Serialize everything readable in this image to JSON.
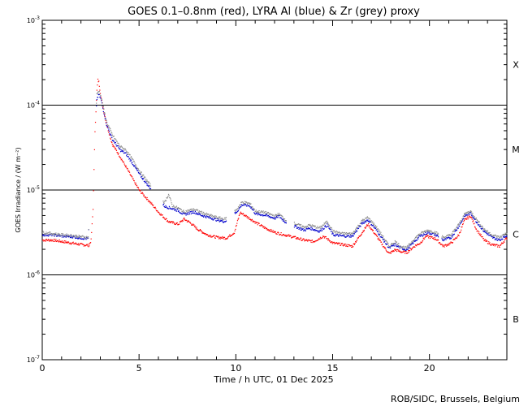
{
  "chart_data": {
    "type": "scatter",
    "title": "GOES 0.1–0.8nm (red), LYRA Al (blue) & Zr (grey) proxy",
    "xlabel": "Time / h UTC, 01 Dec 2025",
    "ylabel": "GOES Irradiance / (W m⁻²)",
    "yscale": "log",
    "xlim": [
      0,
      24
    ],
    "ylim": [
      1e-07,
      0.001
    ],
    "x_ticks": [
      0,
      5,
      10,
      15,
      20
    ],
    "x_tick_labels": [
      "0",
      "5",
      "10",
      "15",
      "20"
    ],
    "y_ticks": [
      {
        "base": "10",
        "exp": "-7",
        "value": 1e-07
      },
      {
        "base": "10",
        "exp": "-6",
        "value": 1e-06
      },
      {
        "base": "10",
        "exp": "-5",
        "value": 1e-05
      },
      {
        "base": "10",
        "exp": "-4",
        "value": 0.0001
      },
      {
        "base": "10",
        "exp": "-3",
        "value": 0.001
      }
    ],
    "flare_class_lines": [
      1e-06,
      1e-05,
      0.0001
    ],
    "flare_classes": [
      {
        "label": "X",
        "value": 0.0003
      },
      {
        "label": "M",
        "value": 3e-05
      },
      {
        "label": "C",
        "value": 3e-06
      },
      {
        "label": "B",
        "value": 3e-07
      }
    ],
    "series": [
      {
        "name": "GOES 0.1–0.8nm",
        "color": "#ff0000",
        "points": [
          [
            0,
            2.6e-06
          ],
          [
            0.5,
            2.6e-06
          ],
          [
            1.0,
            2.5e-06
          ],
          [
            1.5,
            2.4e-06
          ],
          [
            2.0,
            2.3e-06
          ],
          [
            2.4,
            2.25e-06
          ],
          [
            2.5,
            2.6e-06
          ],
          [
            2.6,
            6e-06
          ],
          [
            2.7,
            5e-05
          ],
          [
            2.8,
            0.00015
          ],
          [
            2.85,
            0.0002
          ],
          [
            2.9,
            0.00019
          ],
          [
            3.0,
            0.00013
          ],
          [
            3.3,
            6e-05
          ],
          [
            3.6,
            3.5e-05
          ],
          [
            4.0,
            2.5e-05
          ],
          [
            4.3,
            1.9e-05
          ],
          [
            4.7,
            1.3e-05
          ],
          [
            5.0,
            1e-05
          ],
          [
            5.5,
            7.5e-06
          ],
          [
            6.0,
            5.5e-06
          ],
          [
            6.5,
            4.3e-06
          ],
          [
            7.0,
            4e-06
          ],
          [
            7.3,
            4.6e-06
          ],
          [
            7.6,
            4.2e-06
          ],
          [
            8.0,
            3.5e-06
          ],
          [
            8.5,
            3e-06
          ],
          [
            9.0,
            2.8e-06
          ],
          [
            9.5,
            2.75e-06
          ],
          [
            9.9,
            3.2e-06
          ],
          [
            10.2,
            5.5e-06
          ],
          [
            10.5,
            5e-06
          ],
          [
            11.0,
            4.2e-06
          ],
          [
            11.5,
            3.6e-06
          ],
          [
            12.0,
            3.2e-06
          ],
          [
            12.5,
            3e-06
          ],
          [
            13.0,
            2.8e-06
          ],
          [
            13.5,
            2.6e-06
          ],
          [
            14.0,
            2.5e-06
          ],
          [
            14.5,
            2.9e-06
          ],
          [
            15.0,
            2.4e-06
          ],
          [
            15.5,
            2.3e-06
          ],
          [
            16.0,
            2.2e-06
          ],
          [
            16.5,
            3.2e-06
          ],
          [
            16.8,
            4e-06
          ],
          [
            17.2,
            3e-06
          ],
          [
            17.6,
            2.2e-06
          ],
          [
            17.9,
            1.8e-06
          ],
          [
            18.2,
            2e-06
          ],
          [
            18.5,
            1.9e-06
          ],
          [
            18.8,
            1.85e-06
          ],
          [
            19.2,
            2.2e-06
          ],
          [
            19.5,
            2.4e-06
          ],
          [
            19.8,
            2.9e-06
          ],
          [
            20.3,
            2.7e-06
          ],
          [
            20.7,
            2.2e-06
          ],
          [
            21.1,
            2.4e-06
          ],
          [
            21.5,
            3e-06
          ],
          [
            21.8,
            4.5e-06
          ],
          [
            22.1,
            5e-06
          ],
          [
            22.4,
            3.5e-06
          ],
          [
            22.8,
            2.6e-06
          ],
          [
            23.2,
            2.3e-06
          ],
          [
            23.6,
            2.2e-06
          ],
          [
            24.0,
            2.8e-06
          ]
        ]
      },
      {
        "name": "LYRA Al proxy",
        "color": "#0000cc",
        "points": [
          [
            0,
            3e-06
          ],
          [
            0.5,
            3e-06
          ],
          [
            1.0,
            2.9e-06
          ],
          [
            1.5,
            2.85e-06
          ],
          [
            2.0,
            2.75e-06
          ],
          [
            2.35,
            2.7e-06
          ],
          [
            2.8,
            0.00012
          ],
          [
            2.9,
            0.000135
          ],
          [
            3.0,
            0.00012
          ],
          [
            3.3,
            6e-05
          ],
          [
            3.6,
            4e-05
          ],
          [
            4.0,
            3e-05
          ],
          [
            4.3,
            2.7e-05
          ],
          [
            4.7,
            2e-05
          ],
          [
            5.0,
            1.55e-05
          ],
          [
            5.5,
            1.1e-05
          ],
          [
            6.3,
            6.5e-06
          ],
          [
            6.7,
            6.1e-06
          ],
          [
            7.0,
            5.8e-06
          ],
          [
            7.3,
            5.2e-06
          ],
          [
            7.8,
            5.6e-06
          ],
          [
            8.2,
            5.1e-06
          ],
          [
            8.6,
            4.8e-06
          ],
          [
            9.0,
            4.5e-06
          ],
          [
            9.4,
            4.3e-06
          ],
          [
            10.0,
            5.5e-06
          ],
          [
            10.3,
            6.8e-06
          ],
          [
            10.7,
            6.6e-06
          ],
          [
            11.0,
            5.3e-06
          ],
          [
            11.5,
            5.1e-06
          ],
          [
            12.0,
            4.7e-06
          ],
          [
            12.2,
            5e-06
          ],
          [
            12.5,
            4.3e-06
          ],
          [
            13.0,
            3.8e-06
          ],
          [
            13.5,
            3.4e-06
          ],
          [
            13.8,
            3.6e-06
          ],
          [
            14.3,
            3.3e-06
          ],
          [
            14.7,
            3.9e-06
          ],
          [
            15.0,
            3e-06
          ],
          [
            15.5,
            2.9e-06
          ],
          [
            16.0,
            2.9e-06
          ],
          [
            16.5,
            4.1e-06
          ],
          [
            16.8,
            4.5e-06
          ],
          [
            17.2,
            3.5e-06
          ],
          [
            17.6,
            2.6e-06
          ],
          [
            17.9,
            2.1e-06
          ],
          [
            18.2,
            2.3e-06
          ],
          [
            18.5,
            2.1e-06
          ],
          [
            18.8,
            2e-06
          ],
          [
            19.2,
            2.5e-06
          ],
          [
            19.5,
            2.9e-06
          ],
          [
            19.9,
            3.2e-06
          ],
          [
            20.3,
            3e-06
          ],
          [
            20.7,
            2.6e-06
          ],
          [
            21.1,
            2.8e-06
          ],
          [
            21.5,
            3.8e-06
          ],
          [
            21.8,
            5e-06
          ],
          [
            22.1,
            5.4e-06
          ],
          [
            22.4,
            4.3e-06
          ],
          [
            22.8,
            3.3e-06
          ],
          [
            23.2,
            2.8e-06
          ],
          [
            23.6,
            2.6e-06
          ],
          [
            24.0,
            3e-06
          ]
        ]
      },
      {
        "name": "LYRA Zr proxy",
        "color": "#8c8c8c",
        "points": [
          [
            0,
            3.2e-06
          ],
          [
            0.5,
            3.1e-06
          ],
          [
            1.0,
            3e-06
          ],
          [
            1.5,
            2.95e-06
          ],
          [
            2.0,
            2.85e-06
          ],
          [
            2.35,
            2.8e-06
          ],
          [
            2.8,
            0.000135
          ],
          [
            2.9,
            0.00015
          ],
          [
            3.0,
            0.00013
          ],
          [
            3.3,
            6.5e-05
          ],
          [
            3.6,
            4.5e-05
          ],
          [
            4.0,
            3.3e-05
          ],
          [
            4.3,
            3e-05
          ],
          [
            4.7,
            2.2e-05
          ],
          [
            5.0,
            1.7e-05
          ],
          [
            5.5,
            1.2e-05
          ],
          [
            6.3,
            7.2e-06
          ],
          [
            6.5,
            9e-06
          ],
          [
            6.7,
            6.6e-06
          ],
          [
            7.0,
            6.2e-06
          ],
          [
            7.3,
            5.6e-06
          ],
          [
            7.8,
            6e-06
          ],
          [
            8.2,
            5.5e-06
          ],
          [
            8.6,
            5.1e-06
          ],
          [
            9.0,
            4.8e-06
          ],
          [
            9.4,
            4.6e-06
          ],
          [
            10.0,
            5.9e-06
          ],
          [
            10.3,
            7.3e-06
          ],
          [
            10.7,
            7e-06
          ],
          [
            11.0,
            5.7e-06
          ],
          [
            11.5,
            5.5e-06
          ],
          [
            12.0,
            5e-06
          ],
          [
            12.2,
            5.3e-06
          ],
          [
            12.5,
            4.6e-06
          ],
          [
            13.0,
            4.1e-06
          ],
          [
            13.5,
            3.7e-06
          ],
          [
            13.8,
            3.9e-06
          ],
          [
            14.3,
            3.6e-06
          ],
          [
            14.7,
            4.3e-06
          ],
          [
            15.0,
            3.3e-06
          ],
          [
            15.5,
            3.1e-06
          ],
          [
            16.0,
            3.1e-06
          ],
          [
            16.5,
            4.4e-06
          ],
          [
            16.8,
            4.8e-06
          ],
          [
            17.2,
            3.8e-06
          ],
          [
            17.6,
            2.8e-06
          ],
          [
            17.9,
            2.2e-06
          ],
          [
            18.2,
            2.5e-06
          ],
          [
            18.5,
            2.2e-06
          ],
          [
            18.8,
            2.1e-06
          ],
          [
            19.2,
            2.7e-06
          ],
          [
            19.5,
            3.1e-06
          ],
          [
            19.9,
            3.4e-06
          ],
          [
            20.3,
            3.2e-06
          ],
          [
            20.7,
            2.8e-06
          ],
          [
            21.1,
            3e-06
          ],
          [
            21.5,
            4e-06
          ],
          [
            21.8,
            5.3e-06
          ],
          [
            22.1,
            5.7e-06
          ],
          [
            22.4,
            4.6e-06
          ],
          [
            22.8,
            3.5e-06
          ],
          [
            23.2,
            3e-06
          ],
          [
            23.6,
            2.8e-06
          ],
          [
            24.0,
            3.2e-06
          ]
        ]
      }
    ]
  },
  "footer": {
    "credit": "ROB/SIDC, Brussels, Belgium"
  }
}
